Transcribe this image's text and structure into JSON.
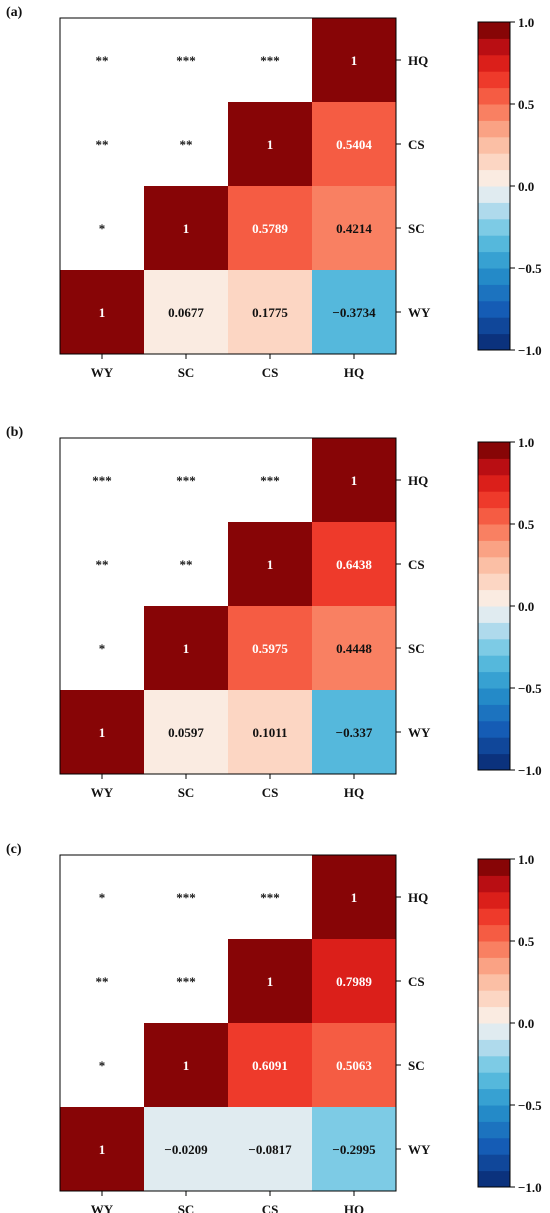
{
  "chart_data": [
    {
      "panel": "(a)",
      "type": "heatmap",
      "variables": [
        "WY",
        "SC",
        "CS",
        "HQ"
      ],
      "values": [
        [
          1,
          0.0677,
          0.1775,
          -0.3734
        ],
        [
          null,
          1,
          0.5789,
          0.4214
        ],
        [
          null,
          null,
          1,
          0.5404
        ],
        [
          null,
          null,
          null,
          1
        ]
      ],
      "labels": [
        [
          "1",
          "0.0677",
          "0.1775",
          "−0.3734"
        ],
        [
          "*",
          "1",
          "0.5789",
          "0.4214"
        ],
        [
          "**",
          "**",
          "1",
          "0.5404"
        ],
        [
          "**",
          "***",
          "***",
          "1"
        ]
      ],
      "colorbar": {
        "range": [
          -1,
          1
        ],
        "ticks": [
          "1.0",
          "0.5",
          "0.0",
          "−0.5",
          "−1.0"
        ]
      }
    },
    {
      "panel": "(b)",
      "type": "heatmap",
      "variables": [
        "WY",
        "SC",
        "CS",
        "HQ"
      ],
      "values": [
        [
          1,
          0.0597,
          0.1011,
          -0.337
        ],
        [
          null,
          1,
          0.5975,
          0.4448
        ],
        [
          null,
          null,
          1,
          0.6438
        ],
        [
          null,
          null,
          null,
          1
        ]
      ],
      "labels": [
        [
          "1",
          "0.0597",
          "0.1011",
          "−0.337"
        ],
        [
          "*",
          "1",
          "0.5975",
          "0.4448"
        ],
        [
          "**",
          "**",
          "1",
          "0.6438"
        ],
        [
          "***",
          "***",
          "***",
          "1"
        ]
      ],
      "colorbar": {
        "range": [
          -1,
          1
        ],
        "ticks": [
          "1.0",
          "0.5",
          "0.0",
          "−0.5",
          "−1.0"
        ]
      }
    },
    {
      "panel": "(c)",
      "type": "heatmap",
      "variables": [
        "WY",
        "SC",
        "CS",
        "HQ"
      ],
      "values": [
        [
          1,
          -0.0209,
          -0.0817,
          -0.2995
        ],
        [
          null,
          1,
          0.6091,
          0.5063
        ],
        [
          null,
          null,
          1,
          0.7989
        ],
        [
          null,
          null,
          null,
          1
        ]
      ],
      "labels": [
        [
          "1",
          "−0.0209",
          "−0.0817",
          "−0.2995"
        ],
        [
          "*",
          "1",
          "0.6091",
          "0.5063"
        ],
        [
          "**",
          "***",
          "1",
          "0.7989"
        ],
        [
          "*",
          "***",
          "***",
          "1"
        ]
      ],
      "colorbar": {
        "range": [
          -1,
          1
        ],
        "ticks": [
          "1.0",
          "0.5",
          "0.0",
          "−0.5",
          "−1.0"
        ]
      }
    }
  ]
}
